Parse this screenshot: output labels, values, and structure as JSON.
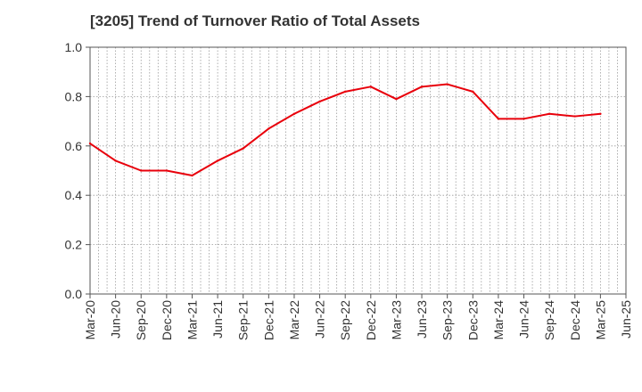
{
  "chart_data": {
    "type": "line",
    "title": "[3205]  Trend of Turnover Ratio of Total Assets",
    "xlabel": "",
    "ylabel": "",
    "ylim": [
      0.0,
      1.0
    ],
    "yticks": [
      "0.0",
      "0.2",
      "0.4",
      "0.6",
      "0.8",
      "1.0"
    ],
    "xticks": [
      "Mar-20",
      "Jun-20",
      "Sep-20",
      "Dec-20",
      "Mar-21",
      "Jun-21",
      "Sep-21",
      "Dec-21",
      "Mar-22",
      "Jun-22",
      "Sep-22",
      "Dec-22",
      "Mar-23",
      "Jun-23",
      "Sep-23",
      "Dec-23",
      "Mar-24",
      "Jun-24",
      "Sep-24",
      "Dec-24",
      "Mar-25",
      "Jun-25"
    ],
    "grid": true,
    "legend": "none",
    "series": [
      {
        "color": "#e8000b",
        "x": [
          "Mar-20",
          "Jun-20",
          "Sep-20",
          "Dec-20",
          "Mar-21",
          "Jun-21",
          "Sep-21",
          "Dec-21",
          "Mar-22",
          "Jun-22",
          "Sep-22",
          "Dec-22",
          "Mar-23",
          "Jun-23",
          "Sep-23",
          "Dec-23",
          "Mar-24",
          "Jun-24",
          "Sep-24",
          "Dec-24",
          "Mar-25"
        ],
        "values": [
          0.61,
          0.54,
          0.5,
          0.5,
          0.48,
          0.54,
          0.59,
          0.67,
          0.73,
          0.78,
          0.82,
          0.84,
          0.79,
          0.84,
          0.85,
          0.82,
          0.71,
          0.71,
          0.73,
          0.72,
          0.73
        ]
      }
    ]
  }
}
